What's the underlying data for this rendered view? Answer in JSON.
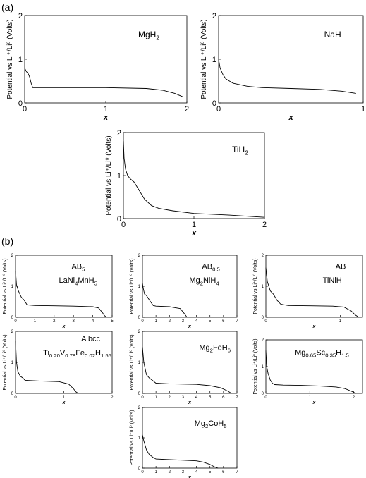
{
  "panel_tags": {
    "a": "(a)",
    "b": "(b)"
  },
  "chart_data": [
    {
      "id": "mgh2",
      "type": "line",
      "label_main": "MgH",
      "label_sub": "2",
      "label_tail": "",
      "xticks": [
        "0",
        "1",
        "2"
      ],
      "yticks": [
        "0",
        "1",
        "2"
      ],
      "xlim": [
        0,
        2
      ],
      "ylim": [
        0,
        2
      ],
      "xlabel": "x",
      "ylabel": "Potential vs  Li⁺/Li⁰  (Volts)",
      "x": [
        0,
        0.02,
        0.04,
        0.06,
        0.08,
        0.1,
        0.2,
        0.5,
        1.0,
        1.5,
        1.7,
        1.85,
        1.95
      ],
      "y": [
        0.8,
        0.72,
        0.68,
        0.6,
        0.45,
        0.35,
        0.35,
        0.35,
        0.35,
        0.33,
        0.29,
        0.22,
        0.14
      ]
    },
    {
      "id": "nah",
      "type": "line",
      "label_main": "NaH",
      "label_sub": "",
      "label_tail": "",
      "xticks": [
        "0",
        "1"
      ],
      "yticks": [
        "0",
        "1",
        "2"
      ],
      "xlim": [
        0,
        1
      ],
      "ylim": [
        0,
        2
      ],
      "xlabel": "x",
      "ylabel": "Potential vs  Li⁺/Li⁰  (Volts)",
      "x": [
        0,
        0.01,
        0.03,
        0.05,
        0.1,
        0.2,
        0.3,
        0.5,
        0.7,
        0.85,
        0.95
      ],
      "y": [
        1.0,
        0.8,
        0.65,
        0.55,
        0.45,
        0.38,
        0.35,
        0.33,
        0.31,
        0.27,
        0.22
      ]
    },
    {
      "id": "tih2",
      "type": "line",
      "label_main": "TiH",
      "label_sub": "2",
      "label_tail": "",
      "xticks": [
        "0",
        "1",
        "2"
      ],
      "yticks": [
        "0",
        "1",
        "2"
      ],
      "xlim": [
        0,
        2
      ],
      "ylim": [
        0,
        2
      ],
      "xlabel": "x",
      "ylabel": "Potential vs  Li⁺/Li⁰  (Volts)",
      "x": [
        0,
        0.01,
        0.03,
        0.06,
        0.1,
        0.15,
        0.2,
        0.3,
        0.4,
        0.5,
        0.7,
        1.0,
        1.5,
        1.8,
        2.0
      ],
      "y": [
        1.8,
        1.4,
        1.15,
        1.0,
        0.92,
        0.85,
        0.72,
        0.45,
        0.3,
        0.24,
        0.18,
        0.12,
        0.08,
        0.05,
        0.03
      ]
    },
    {
      "id": "lani4mnh5",
      "type": "line",
      "label_main": "AB",
      "label_sub": "5",
      "label_tail": "",
      "label2_main": "LaNi",
      "label2_parts": [
        [
          "LaNi",
          ""
        ],
        [
          "4",
          "sub"
        ],
        [
          "MnH",
          ""
        ],
        [
          "5",
          "sub"
        ]
      ],
      "xticks": [
        "0",
        "1",
        "2",
        "3",
        "4",
        "5"
      ],
      "yticks": [
        "0",
        "1",
        "2"
      ],
      "xlim": [
        0,
        5
      ],
      "ylim": [
        0,
        2
      ],
      "xlabel": "x",
      "ylabel": "Potential vs  Li⁺/Li⁰  (Volts)",
      "x": [
        0,
        0.05,
        0.15,
        0.3,
        0.45,
        0.6,
        1.0,
        2.0,
        3.0,
        4.0,
        4.3,
        4.5,
        4.6,
        4.7
      ],
      "y": [
        1.5,
        1.05,
        0.85,
        0.65,
        0.55,
        0.4,
        0.38,
        0.37,
        0.36,
        0.34,
        0.3,
        0.15,
        0.06,
        0.0
      ]
    },
    {
      "id": "mg2nih4",
      "type": "line",
      "label_main": "AB",
      "label_sub": "0.5",
      "label_tail": "",
      "label2_parts": [
        [
          "Mg",
          ""
        ],
        [
          "2",
          "sub"
        ],
        [
          "NiH",
          ""
        ],
        [
          "4",
          "sub"
        ]
      ],
      "xticks": [
        "0",
        "1",
        "2",
        "3",
        "4",
        "5",
        "6",
        "7"
      ],
      "yticks": [
        "0",
        "1",
        "2"
      ],
      "xlim": [
        0,
        7
      ],
      "ylim": [
        0,
        2
      ],
      "xlabel": "x",
      "ylabel": "Potential vs  Li⁺/Li⁰  (Volts)",
      "x": [
        0,
        0.05,
        0.15,
        0.3,
        0.6,
        0.8,
        1.0,
        2.0,
        2.8,
        3.1,
        3.3
      ],
      "y": [
        1.1,
        0.95,
        0.75,
        0.7,
        0.5,
        0.38,
        0.36,
        0.34,
        0.28,
        0.12,
        0.0
      ]
    },
    {
      "id": "tinih",
      "type": "line",
      "label_main": "AB",
      "label_sub": "",
      "label_tail": "",
      "label2_parts": [
        [
          "TiNiH",
          ""
        ]
      ],
      "xticks": [
        "0",
        "1"
      ],
      "yticks": [
        "0",
        "1",
        "2"
      ],
      "xlim": [
        0,
        1.3
      ],
      "ylim": [
        0,
        2
      ],
      "xlabel": "x",
      "ylabel": "Potential vs  Li⁺/Li⁰  (Volts)",
      "x": [
        0,
        0.02,
        0.06,
        0.1,
        0.15,
        0.2,
        0.3,
        0.6,
        0.9,
        1.05,
        1.15,
        1.2,
        1.25
      ],
      "y": [
        1.6,
        1.15,
        0.85,
        0.75,
        0.55,
        0.42,
        0.38,
        0.37,
        0.36,
        0.33,
        0.2,
        0.08,
        0.0
      ]
    },
    {
      "id": "ti_bcc",
      "type": "line",
      "label_main": "A bcc",
      "label_sub": "",
      "label_tail": "",
      "label2_parts": [
        [
          "Ti",
          ""
        ],
        [
          "0.20",
          "sub"
        ],
        [
          "V",
          ""
        ],
        [
          "0.78",
          "sub"
        ],
        [
          "Fe",
          ""
        ],
        [
          "0.02",
          "sub"
        ],
        [
          "H",
          ""
        ],
        [
          "1.55",
          "sub"
        ]
      ],
      "xticks": [
        "0",
        "1",
        "2"
      ],
      "yticks": [
        "0",
        "1",
        "2"
      ],
      "xlim": [
        0,
        2
      ],
      "ylim": [
        0,
        2
      ],
      "xlabel": "x",
      "ylabel": "Potential vs  Li⁺/Li⁰  (Volts)",
      "x": [
        0,
        0.02,
        0.05,
        0.1,
        0.15,
        0.2,
        0.5,
        0.9,
        1.1,
        1.2,
        1.25,
        1.3
      ],
      "y": [
        1.7,
        1.0,
        0.7,
        0.55,
        0.5,
        0.42,
        0.4,
        0.38,
        0.3,
        0.15,
        0.05,
        0.0
      ]
    },
    {
      "id": "mg2feh6",
      "type": "line",
      "label_main": "Mg",
      "label_sub": "2",
      "label_tail": "FeH6",
      "label_parts": [
        [
          "Mg",
          ""
        ],
        [
          "2",
          "sub"
        ],
        [
          "FeH",
          ""
        ],
        [
          "6",
          "sub"
        ]
      ],
      "xticks": [
        "0",
        "1",
        "2",
        "3",
        "4",
        "5",
        "6",
        "7"
      ],
      "yticks": [
        "0",
        "1",
        "2"
      ],
      "xlim": [
        0,
        7
      ],
      "ylim": [
        0,
        2
      ],
      "xlabel": "x",
      "ylabel": "Potential vs  Li⁺/Li⁰  (Volts)",
      "x": [
        0,
        0.1,
        0.3,
        0.5,
        0.8,
        1.0,
        2.0,
        3.0,
        4.0,
        5.0,
        5.8,
        6.3,
        6.6
      ],
      "y": [
        1.5,
        1.0,
        0.6,
        0.5,
        0.4,
        0.33,
        0.31,
        0.3,
        0.29,
        0.25,
        0.18,
        0.08,
        0.0
      ]
    },
    {
      "id": "mgsch",
      "type": "line",
      "label_main": "",
      "label_sub": "",
      "label_tail": "",
      "label_parts": [
        [
          "Mg",
          ""
        ],
        [
          "0.65",
          "sub"
        ],
        [
          "Sc",
          ""
        ],
        [
          "0.35",
          "sub"
        ],
        [
          "H",
          ""
        ],
        [
          "1.5",
          "sub"
        ]
      ],
      "xticks": [
        "0",
        "1",
        "2"
      ],
      "yticks": [
        "0",
        "1",
        "2"
      ],
      "xlim": [
        0,
        2.2
      ],
      "ylim": [
        0,
        2
      ],
      "xlabel": "x",
      "ylabel": "Potential vs  Li⁺/Li⁰  (Volts)",
      "x": [
        0,
        0.02,
        0.05,
        0.1,
        0.15,
        0.2,
        0.4,
        0.8,
        1.2,
        1.6,
        1.8,
        1.95,
        2.05
      ],
      "y": [
        1.6,
        1.0,
        0.75,
        0.5,
        0.38,
        0.33,
        0.31,
        0.3,
        0.28,
        0.24,
        0.18,
        0.08,
        0.0
      ]
    },
    {
      "id": "mg2coh5",
      "type": "line",
      "label_main": "",
      "label_sub": "",
      "label_tail": "",
      "label_parts": [
        [
          "Mg",
          ""
        ],
        [
          "2",
          "sub"
        ],
        [
          "CoH",
          ""
        ],
        [
          "5",
          "sub"
        ]
      ],
      "xticks": [
        "0",
        "1",
        "2",
        "3",
        "4",
        "5",
        "6",
        "7"
      ],
      "yticks": [
        "0",
        "1",
        "2"
      ],
      "xlim": [
        0,
        7
      ],
      "ylim": [
        0,
        2
      ],
      "xlabel": "x",
      "ylabel": "Potential vs  Li⁺/Li⁰  (Volts)",
      "x": [
        0,
        0.1,
        0.3,
        0.5,
        0.8,
        1.0,
        2.0,
        3.0,
        4.0,
        4.5,
        5.0,
        5.3,
        5.6
      ],
      "y": [
        1.1,
        0.9,
        0.6,
        0.45,
        0.35,
        0.3,
        0.28,
        0.26,
        0.24,
        0.2,
        0.12,
        0.05,
        0.0
      ]
    }
  ]
}
